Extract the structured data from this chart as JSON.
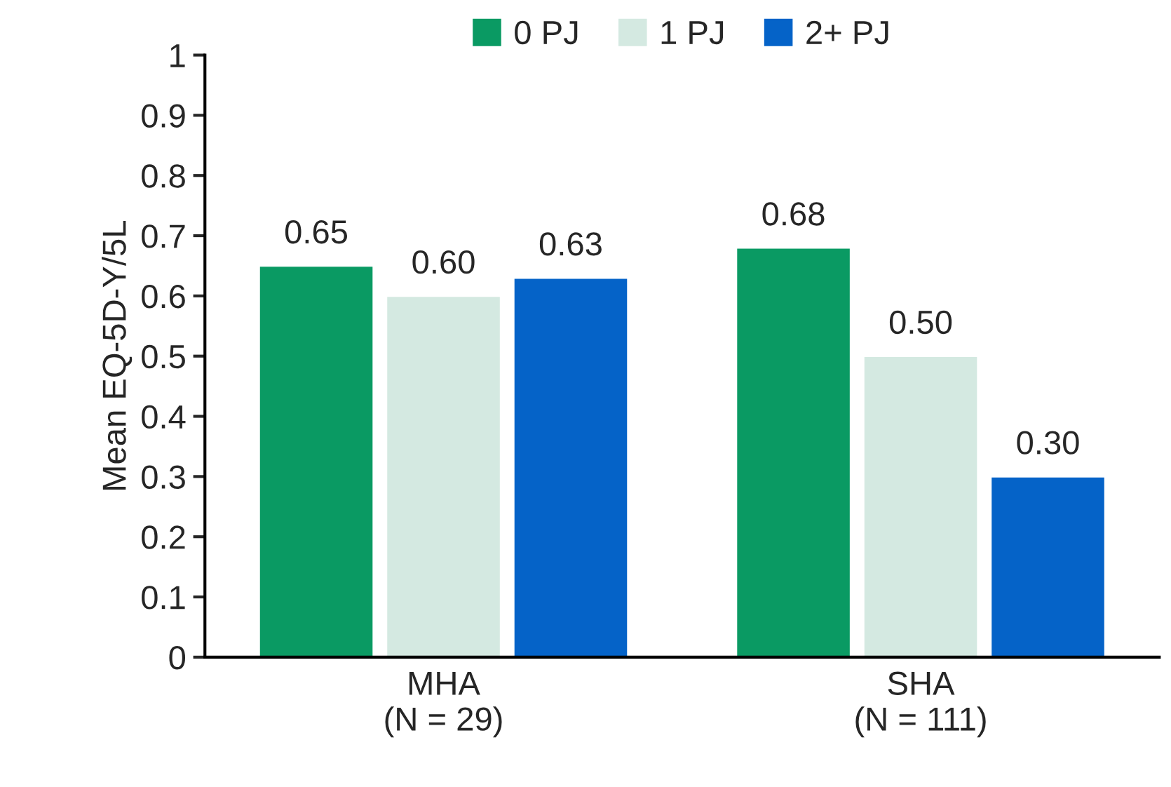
{
  "chart_data": {
    "type": "bar",
    "ylabel": "Mean EQ-5D-Y/5L",
    "categories": [
      "MHA\n(N = 29)",
      "SHA\n(N = 111)"
    ],
    "series": [
      {
        "name": "0 PJ",
        "color": "#0a9a63",
        "values": [
          0.65,
          0.68
        ],
        "value_labels": [
          "0.65",
          "0.68"
        ]
      },
      {
        "name": "1 PJ",
        "color": "#d4e9e1",
        "values": [
          0.6,
          0.5
        ],
        "value_labels": [
          "0.60",
          "0.50"
        ]
      },
      {
        "name": "2+ PJ",
        "color": "#0563c8",
        "values": [
          0.63,
          0.3
        ],
        "value_labels": [
          "0.63",
          "0.30"
        ]
      }
    ],
    "ylim": [
      0,
      1
    ],
    "yticks": [
      0,
      0.1,
      0.2,
      0.3,
      0.4,
      0.5,
      0.6,
      0.7,
      0.8,
      0.9,
      1
    ],
    "grid": false,
    "legend": "top"
  }
}
